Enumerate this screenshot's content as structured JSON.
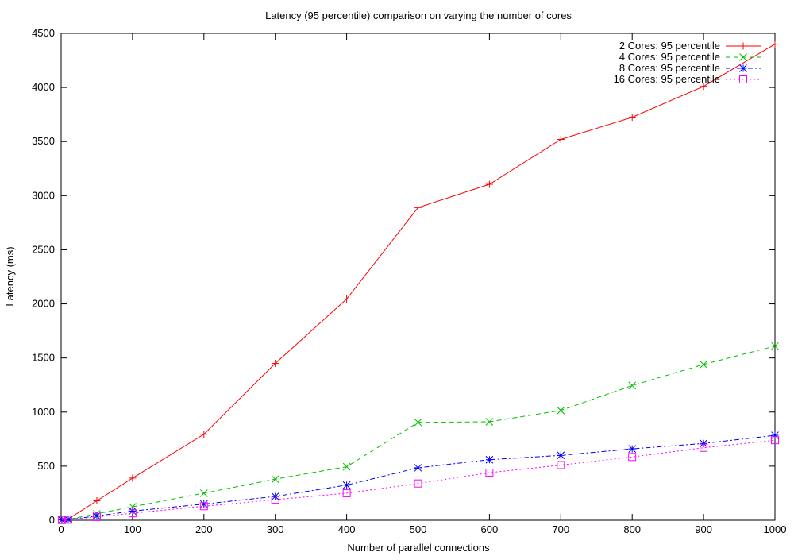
{
  "chart_data": {
    "type": "line",
    "title": "Latency (95 percentile) comparison on varying the number of cores",
    "xlabel": "Number of parallel connections",
    "ylabel": "Latency (ms)",
    "xlim": [
      0,
      1000
    ],
    "ylim": [
      0,
      4500
    ],
    "xticks": [
      0,
      100,
      200,
      300,
      400,
      500,
      600,
      700,
      800,
      900,
      1000
    ],
    "yticks": [
      0,
      500,
      1000,
      1500,
      2000,
      2500,
      3000,
      3500,
      4000,
      4500
    ],
    "grid": false,
    "legend_position": "top-right",
    "x": [
      1,
      10,
      50,
      100,
      200,
      300,
      400,
      500,
      600,
      700,
      800,
      900,
      1000
    ],
    "series": [
      {
        "name": "2 Cores: 95 percentile",
        "color": "#ff0000",
        "marker": "plus",
        "dash": "solid",
        "values": [
          5,
          12,
          180,
          390,
          795,
          1450,
          2045,
          2890,
          3105,
          3520,
          3725,
          4010,
          4400
        ]
      },
      {
        "name": "4 Cores: 95 percentile",
        "color": "#00c000",
        "marker": "cross",
        "dash": "dashed",
        "values": [
          3,
          8,
          60,
          125,
          250,
          380,
          495,
          905,
          910,
          1015,
          1245,
          1440,
          1610
        ]
      },
      {
        "name": "8 Cores: 95 percentile",
        "color": "#0000ff",
        "marker": "star",
        "dash": "dash-dot",
        "values": [
          3,
          6,
          40,
          85,
          150,
          220,
          325,
          485,
          560,
          600,
          660,
          710,
          785
        ]
      },
      {
        "name": "16 Cores: 95 percentile",
        "color": "#ff00ff",
        "marker": "square",
        "dash": "dotted",
        "values": [
          2,
          5,
          30,
          65,
          130,
          190,
          250,
          340,
          440,
          510,
          585,
          670,
          740
        ]
      }
    ]
  }
}
